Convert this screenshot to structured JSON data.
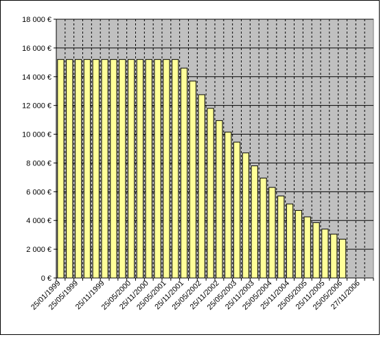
{
  "chart_data": {
    "type": "bar",
    "title": "",
    "xlabel": "",
    "ylabel": "",
    "ylim": [
      0,
      18000
    ],
    "y_tick_values": [
      0,
      2000,
      4000,
      6000,
      8000,
      10000,
      12000,
      14000,
      16000,
      18000
    ],
    "y_tick_labels": [
      "0 €",
      "2 000 €",
      "4 000 €",
      "6 000 €",
      "8 000 €",
      "10 000 €",
      "12 000 €",
      "14 000 €",
      "16 000 €",
      "18 000 €"
    ],
    "categories": [
      "25/01/1999",
      "",
      "25/05/1999",
      "",
      "",
      "25/11/1999",
      "",
      "",
      "25/05/2000",
      "",
      "25/11/2000",
      "",
      "25/05/2001",
      "",
      "25/11/2001",
      "",
      "25/05/2002",
      "",
      "25/11/2002",
      "",
      "25/05/2003",
      "",
      "25/11/2003",
      "",
      "25/05/2004",
      "",
      "25/11/2004",
      "",
      "25/05/2005",
      "",
      "25/11/2005",
      "",
      "25/05/2006",
      "",
      "27/11/2006",
      ""
    ],
    "values": [
      15200,
      15200,
      15200,
      15200,
      15200,
      15200,
      15200,
      15200,
      15200,
      15200,
      15200,
      15200,
      15200,
      15200,
      14600,
      13700,
      12750,
      11800,
      10950,
      10150,
      9450,
      8700,
      7800,
      6950,
      6300,
      5700,
      5150,
      4700,
      4250,
      3850,
      3400,
      3050,
      2700,
      0,
      0,
      0
    ],
    "colors": {
      "plot_background": "#c0c0c0",
      "bar_fill": "#ffff99",
      "bar_stroke": "#000000",
      "gridline": "#000000"
    },
    "grid": true,
    "vertical_grid_style": "dashed",
    "legend": "none"
  }
}
